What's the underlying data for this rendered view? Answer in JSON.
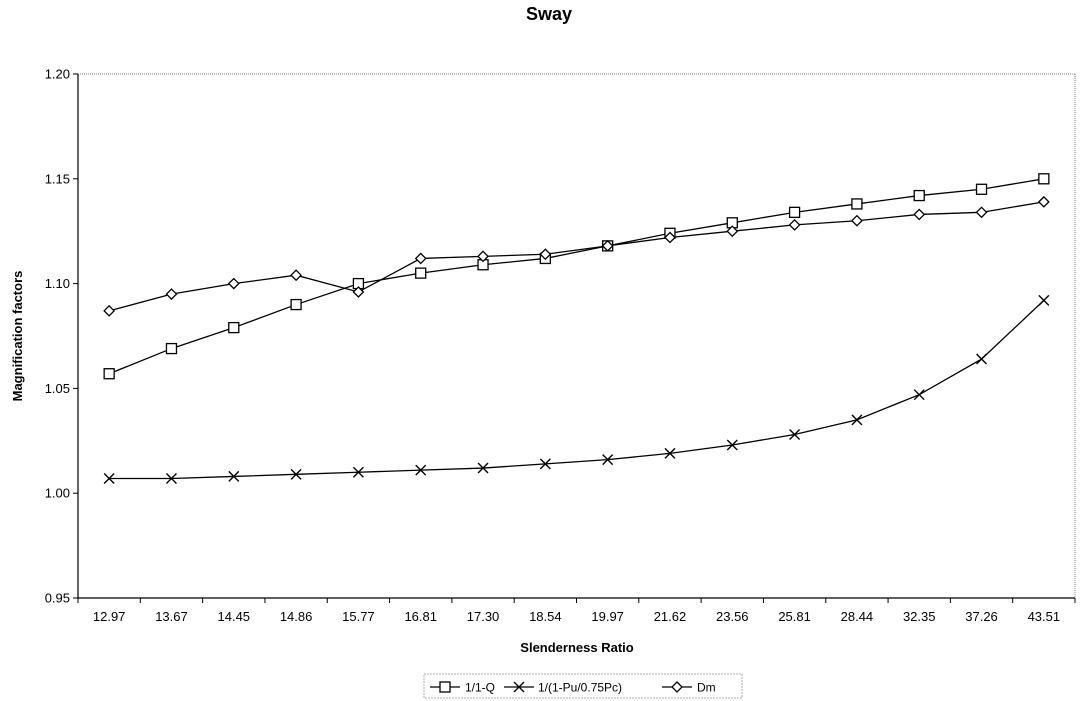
{
  "chart_data": {
    "type": "line",
    "title": "Sway",
    "xlabel": "Slenderness Ratio",
    "ylabel": "Magnification factors",
    "categories": [
      "12.97",
      "13.67",
      "14.45",
      "14.86",
      "15.77",
      "16.81",
      "17.30",
      "18.54",
      "19.97",
      "21.62",
      "23.56",
      "25.81",
      "28.44",
      "32.35",
      "37.26",
      "43.51"
    ],
    "ylim": [
      0.95,
      1.2
    ],
    "yticks": [
      "0.95",
      "1.00",
      "1.05",
      "1.10",
      "1.15",
      "1.20"
    ],
    "grid": false,
    "legend_position": "bottom",
    "series": [
      {
        "name": "1/1-Q",
        "marker": "square",
        "values": [
          1.057,
          1.069,
          1.079,
          1.09,
          1.1,
          1.105,
          1.109,
          1.112,
          1.118,
          1.124,
          1.129,
          1.134,
          1.138,
          1.142,
          1.145,
          1.15
        ]
      },
      {
        "name": "1/(1-Pu/0.75Pc)",
        "marker": "x",
        "values": [
          1.007,
          1.007,
          1.008,
          1.009,
          1.01,
          1.011,
          1.012,
          1.014,
          1.016,
          1.019,
          1.023,
          1.028,
          1.035,
          1.047,
          1.064,
          1.092
        ]
      },
      {
        "name": "Dm",
        "marker": "diamond",
        "values": [
          1.087,
          1.095,
          1.1,
          1.104,
          1.096,
          1.112,
          1.113,
          1.114,
          1.118,
          1.122,
          1.125,
          1.128,
          1.13,
          1.133,
          1.134,
          1.139
        ]
      }
    ]
  }
}
